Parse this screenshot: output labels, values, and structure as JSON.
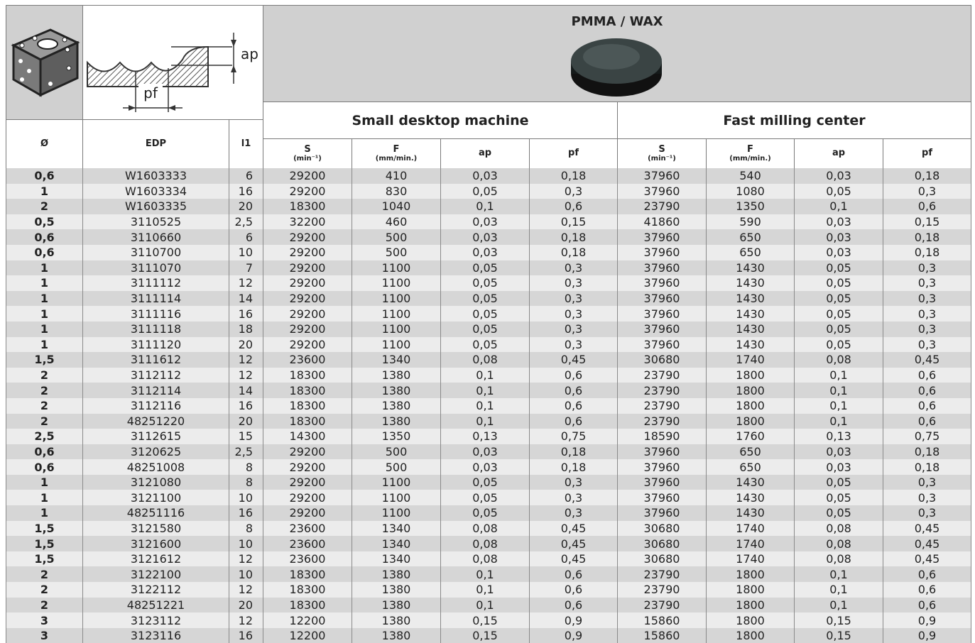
{
  "header": {
    "material": "PMMA / WAX",
    "diagram": {
      "ap": "ap",
      "pf": "pf"
    },
    "groups": [
      "Small desktop machine",
      "Fast milling center"
    ]
  },
  "table": {
    "columns": [
      {
        "label": "Ø"
      },
      {
        "label": "EDP"
      },
      {
        "label": "l1"
      },
      {
        "label": "S",
        "unit": "(min⁻¹)"
      },
      {
        "label": "F",
        "unit": "(mm/min.)"
      },
      {
        "label": "ap"
      },
      {
        "label": "pf"
      },
      {
        "label": "S",
        "unit": "(min⁻¹)"
      },
      {
        "label": "F",
        "unit": "(mm/min.)"
      },
      {
        "label": "ap"
      },
      {
        "label": "pf"
      }
    ],
    "rows": [
      [
        "0,6",
        "W1603333",
        "6",
        "29200",
        "410",
        "0,03",
        "0,18",
        "37960",
        "540",
        "0,03",
        "0,18"
      ],
      [
        "1",
        "W1603334",
        "16",
        "29200",
        "830",
        "0,05",
        "0,3",
        "37960",
        "1080",
        "0,05",
        "0,3"
      ],
      [
        "2",
        "W1603335",
        "20",
        "18300",
        "1040",
        "0,1",
        "0,6",
        "23790",
        "1350",
        "0,1",
        "0,6"
      ],
      [
        "0,5",
        "3110525",
        "2,5",
        "32200",
        "460",
        "0,03",
        "0,15",
        "41860",
        "590",
        "0,03",
        "0,15"
      ],
      [
        "0,6",
        "3110660",
        "6",
        "29200",
        "500",
        "0,03",
        "0,18",
        "37960",
        "650",
        "0,03",
        "0,18"
      ],
      [
        "0,6",
        "3110700",
        "10",
        "29200",
        "500",
        "0,03",
        "0,18",
        "37960",
        "650",
        "0,03",
        "0,18"
      ],
      [
        "1",
        "3111070",
        "7",
        "29200",
        "1100",
        "0,05",
        "0,3",
        "37960",
        "1430",
        "0,05",
        "0,3"
      ],
      [
        "1",
        "3111112",
        "12",
        "29200",
        "1100",
        "0,05",
        "0,3",
        "37960",
        "1430",
        "0,05",
        "0,3"
      ],
      [
        "1",
        "3111114",
        "14",
        "29200",
        "1100",
        "0,05",
        "0,3",
        "37960",
        "1430",
        "0,05",
        "0,3"
      ],
      [
        "1",
        "3111116",
        "16",
        "29200",
        "1100",
        "0,05",
        "0,3",
        "37960",
        "1430",
        "0,05",
        "0,3"
      ],
      [
        "1",
        "3111118",
        "18",
        "29200",
        "1100",
        "0,05",
        "0,3",
        "37960",
        "1430",
        "0,05",
        "0,3"
      ],
      [
        "1",
        "3111120",
        "20",
        "29200",
        "1100",
        "0,05",
        "0,3",
        "37960",
        "1430",
        "0,05",
        "0,3"
      ],
      [
        "1,5",
        "3111612",
        "12",
        "23600",
        "1340",
        "0,08",
        "0,45",
        "30680",
        "1740",
        "0,08",
        "0,45"
      ],
      [
        "2",
        "3112112",
        "12",
        "18300",
        "1380",
        "0,1",
        "0,6",
        "23790",
        "1800",
        "0,1",
        "0,6"
      ],
      [
        "2",
        "3112114",
        "14",
        "18300",
        "1380",
        "0,1",
        "0,6",
        "23790",
        "1800",
        "0,1",
        "0,6"
      ],
      [
        "2",
        "3112116",
        "16",
        "18300",
        "1380",
        "0,1",
        "0,6",
        "23790",
        "1800",
        "0,1",
        "0,6"
      ],
      [
        "2",
        "48251220",
        "20",
        "18300",
        "1380",
        "0,1",
        "0,6",
        "23790",
        "1800",
        "0,1",
        "0,6"
      ],
      [
        "2,5",
        "3112615",
        "15",
        "14300",
        "1350",
        "0,13",
        "0,75",
        "18590",
        "1760",
        "0,13",
        "0,75"
      ],
      [
        "0,6",
        "3120625",
        "2,5",
        "29200",
        "500",
        "0,03",
        "0,18",
        "37960",
        "650",
        "0,03",
        "0,18"
      ],
      [
        "0,6",
        "48251008",
        "8",
        "29200",
        "500",
        "0,03",
        "0,18",
        "37960",
        "650",
        "0,03",
        "0,18"
      ],
      [
        "1",
        "3121080",
        "8",
        "29200",
        "1100",
        "0,05",
        "0,3",
        "37960",
        "1430",
        "0,05",
        "0,3"
      ],
      [
        "1",
        "3121100",
        "10",
        "29200",
        "1100",
        "0,05",
        "0,3",
        "37960",
        "1430",
        "0,05",
        "0,3"
      ],
      [
        "1",
        "48251116",
        "16",
        "29200",
        "1100",
        "0,05",
        "0,3",
        "37960",
        "1430",
        "0,05",
        "0,3"
      ],
      [
        "1,5",
        "3121580",
        "8",
        "23600",
        "1340",
        "0,08",
        "0,45",
        "30680",
        "1740",
        "0,08",
        "0,45"
      ],
      [
        "1,5",
        "3121600",
        "10",
        "23600",
        "1340",
        "0,08",
        "0,45",
        "30680",
        "1740",
        "0,08",
        "0,45"
      ],
      [
        "1,5",
        "3121612",
        "12",
        "23600",
        "1340",
        "0,08",
        "0,45",
        "30680",
        "1740",
        "0,08",
        "0,45"
      ],
      [
        "2",
        "3122100",
        "10",
        "18300",
        "1380",
        "0,1",
        "0,6",
        "23790",
        "1800",
        "0,1",
        "0,6"
      ],
      [
        "2",
        "3122112",
        "12",
        "18300",
        "1380",
        "0,1",
        "0,6",
        "23790",
        "1800",
        "0,1",
        "0,6"
      ],
      [
        "2",
        "48251221",
        "20",
        "18300",
        "1380",
        "0,1",
        "0,6",
        "23790",
        "1800",
        "0,1",
        "0,6"
      ],
      [
        "3",
        "3123112",
        "12",
        "12200",
        "1380",
        "0,15",
        "0,9",
        "15860",
        "1800",
        "0,15",
        "0,9"
      ],
      [
        "3",
        "3123116",
        "16",
        "12200",
        "1380",
        "0,15",
        "0,9",
        "15860",
        "1800",
        "0,15",
        "0,9"
      ]
    ]
  }
}
